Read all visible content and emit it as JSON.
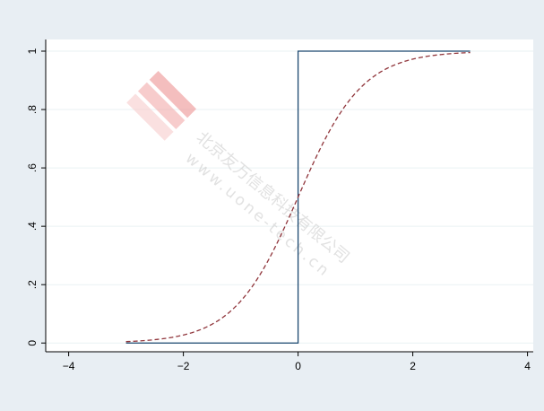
{
  "chart_data": {
    "type": "line",
    "title": "",
    "xlabel": "",
    "ylabel": "",
    "xlim": [
      -4.4,
      4.1
    ],
    "ylim": [
      -0.03,
      1.04
    ],
    "x_ticks": [
      -4,
      -2,
      0,
      2,
      4
    ],
    "x_tick_labels": [
      "−4",
      "−2",
      "0",
      "2",
      "4"
    ],
    "y_ticks": [
      0,
      0.2,
      0.4,
      0.6,
      0.8,
      1
    ],
    "y_tick_labels": [
      "0",
      ".2",
      ".4",
      ".6",
      ".8",
      "1"
    ],
    "grid": "horizontal",
    "legend": "none",
    "series": [
      {
        "style": "solid",
        "color": "#1a476f",
        "x": [
          -3,
          0,
          0,
          3
        ],
        "y": [
          0,
          0,
          1,
          1
        ]
      },
      {
        "style": "dashed",
        "color": "#90353b",
        "x": [
          -3,
          -2.5,
          -2,
          -1.5,
          -1,
          -0.5,
          0,
          0.5,
          1,
          1.5,
          2,
          2.5,
          3
        ],
        "y": [
          0.0047,
          0.0117,
          0.0266,
          0.0554,
          0.1033,
          0.1737,
          0.5,
          0.8263,
          0.8967,
          0.9446,
          0.9734,
          0.9883,
          0.9953
        ]
      }
    ]
  },
  "colors": {
    "background": "#e8eef3",
    "plot_area": "#ffffff",
    "grid": "#eaf2f3",
    "watermark": "#c9c9c9",
    "watermark_logo": "#f2b5b5"
  },
  "watermark": {
    "company": "北京友万信息科技有限公司",
    "url": "www.uone-tech.cn"
  }
}
